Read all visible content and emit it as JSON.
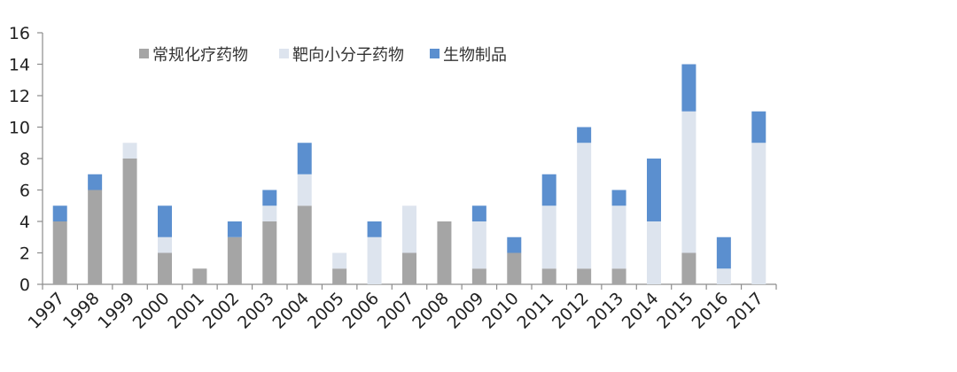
{
  "chart_data": {
    "type": "bar",
    "stacked": true,
    "title": "",
    "xlabel": "",
    "ylabel": "",
    "ylim": [
      0,
      16
    ],
    "yticks": [
      0,
      2,
      4,
      6,
      8,
      10,
      12,
      14,
      16
    ],
    "grid": false,
    "legend_position": "top",
    "categories": [
      "1997",
      "1998",
      "1999",
      "2000",
      "2001",
      "2002",
      "2003",
      "2004",
      "2005",
      "2006",
      "2007",
      "2008",
      "2009",
      "2010",
      "2011",
      "2012",
      "2013",
      "2014",
      "2015",
      "2016",
      "2017"
    ],
    "series": [
      {
        "name": "常规化疗药物",
        "color": "#a5a5a5",
        "values": [
          4,
          6,
          8,
          2,
          1,
          3,
          4,
          5,
          1,
          0,
          2,
          4,
          1,
          2,
          1,
          1,
          1,
          0,
          2,
          0,
          0
        ]
      },
      {
        "name": "靶向小分子药物",
        "color": "#dde4ee",
        "values": [
          0,
          0,
          1,
          1,
          0,
          0,
          1,
          2,
          1,
          3,
          3,
          0,
          3,
          0,
          4,
          8,
          4,
          4,
          9,
          1,
          9
        ]
      },
      {
        "name": "生物制品",
        "color": "#5b8fcf",
        "values": [
          1,
          1,
          0,
          2,
          0,
          1,
          1,
          2,
          0,
          1,
          0,
          0,
          1,
          1,
          2,
          1,
          1,
          4,
          3,
          2,
          2
        ]
      }
    ]
  }
}
